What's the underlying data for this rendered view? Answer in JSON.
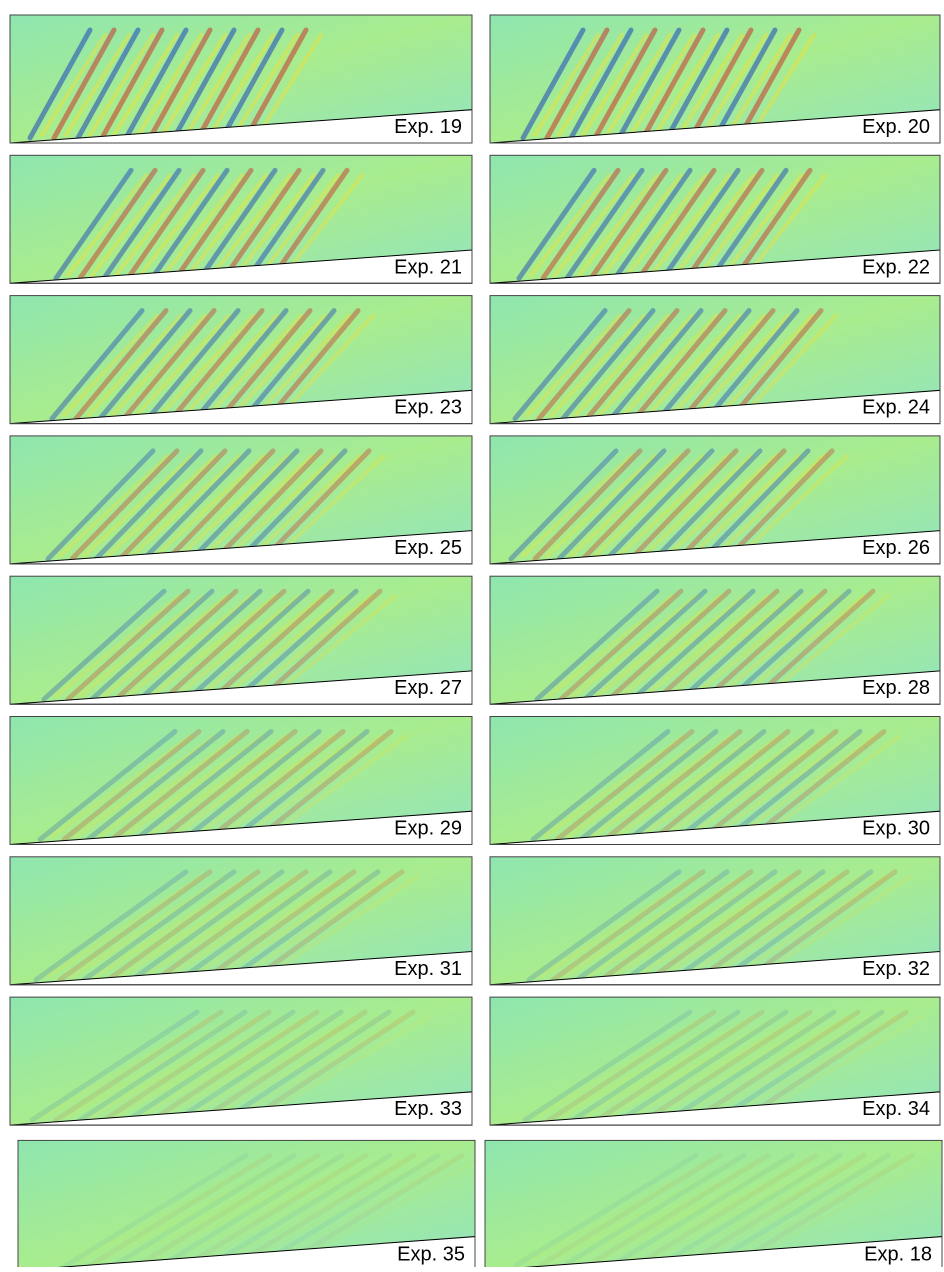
{
  "panels": [
    {
      "label": "Exp. 19"
    },
    {
      "label": "Exp. 20"
    },
    {
      "label": "Exp. 21"
    },
    {
      "label": "Exp. 22"
    },
    {
      "label": "Exp. 23"
    },
    {
      "label": "Exp. 24"
    },
    {
      "label": "Exp. 25"
    },
    {
      "label": "Exp. 26"
    },
    {
      "label": "Exp. 27"
    },
    {
      "label": "Exp. 28"
    },
    {
      "label": "Exp. 29"
    },
    {
      "label": "Exp. 30"
    },
    {
      "label": "Exp. 31"
    },
    {
      "label": "Exp. 32"
    },
    {
      "label": "Exp. 33"
    },
    {
      "label": "Exp. 34"
    },
    {
      "label": "Exp. 35"
    },
    {
      "label": "Exp. 18"
    }
  ]
}
